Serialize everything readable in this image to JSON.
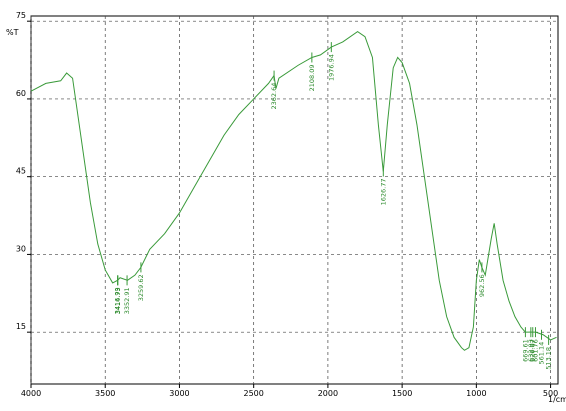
{
  "chart_data": {
    "type": "line",
    "y_label": "%T",
    "x_label": "1/cm",
    "xlim": [
      4000,
      450
    ],
    "ylim": [
      5,
      76
    ],
    "xticks": [
      4000,
      3500,
      3000,
      2500,
      2000,
      1500,
      1000,
      500
    ],
    "yticks": [
      15,
      30,
      45,
      60,
      75
    ],
    "grid": true,
    "series": [
      {
        "name": "spectrum",
        "color": "#3a9a3a",
        "x": [
          4000,
          3900,
          3800,
          3760,
          3720,
          3700,
          3650,
          3600,
          3550,
          3500,
          3450,
          3417,
          3400,
          3350,
          3300,
          3260,
          3200,
          3100,
          3000,
          2900,
          2800,
          2700,
          2600,
          2500,
          2400,
          2363,
          2350,
          2330,
          2200,
          2108,
          2050,
          1977,
          1900,
          1800,
          1750,
          1700,
          1660,
          1627,
          1600,
          1560,
          1530,
          1500,
          1450,
          1400,
          1350,
          1300,
          1250,
          1200,
          1150,
          1100,
          1080,
          1050,
          1020,
          1000,
          980,
          963,
          940,
          900,
          880,
          860,
          820,
          780,
          740,
          700,
          670,
          600,
          550,
          500,
          460
        ],
        "values": [
          61.5,
          63,
          63.5,
          65,
          64,
          60,
          50,
          40,
          32,
          27,
          24.5,
          25,
          25.5,
          25,
          26,
          27.5,
          31,
          34,
          38,
          43,
          48,
          53,
          57,
          60,
          63,
          64.5,
          62,
          64,
          66.5,
          68,
          68.5,
          70,
          71,
          73,
          72,
          68,
          55,
          46,
          55,
          66,
          68,
          67,
          63,
          55,
          45,
          35,
          25,
          18,
          14,
          12,
          11.5,
          12,
          16,
          25,
          29,
          27.5,
          26,
          33,
          36,
          32,
          25,
          21,
          18,
          16,
          15,
          15,
          14.5,
          13.5,
          14
        ]
      }
    ],
    "annotations": [
      {
        "label": "3416.99",
        "x": 3416.99,
        "y": 25
      },
      {
        "label": "3414.73",
        "x": 3414.73,
        "y": 25
      },
      {
        "label": "3352.91",
        "x": 3352.91,
        "y": 25
      },
      {
        "label": "3259.62",
        "x": 3259.62,
        "y": 27.5
      },
      {
        "label": "2362.64",
        "x": 2362.64,
        "y": 64.5
      },
      {
        "label": "2108.09",
        "x": 2108.09,
        "y": 68
      },
      {
        "label": "1976.94",
        "x": 1976.94,
        "y": 70
      },
      {
        "label": "1626.77",
        "x": 1626.77,
        "y": 46
      },
      {
        "label": "962.56",
        "x": 962.56,
        "y": 27.5
      },
      {
        "label": "669.61",
        "x": 669.61,
        "y": 15
      },
      {
        "label": "632.93",
        "x": 632.93,
        "y": 15
      },
      {
        "label": "620.07",
        "x": 620.07,
        "y": 15
      },
      {
        "label": "601.76",
        "x": 601.76,
        "y": 15
      },
      {
        "label": "561.14",
        "x": 561.14,
        "y": 14.5
      },
      {
        "label": "513.18",
        "x": 513.18,
        "y": 13.5
      }
    ]
  }
}
